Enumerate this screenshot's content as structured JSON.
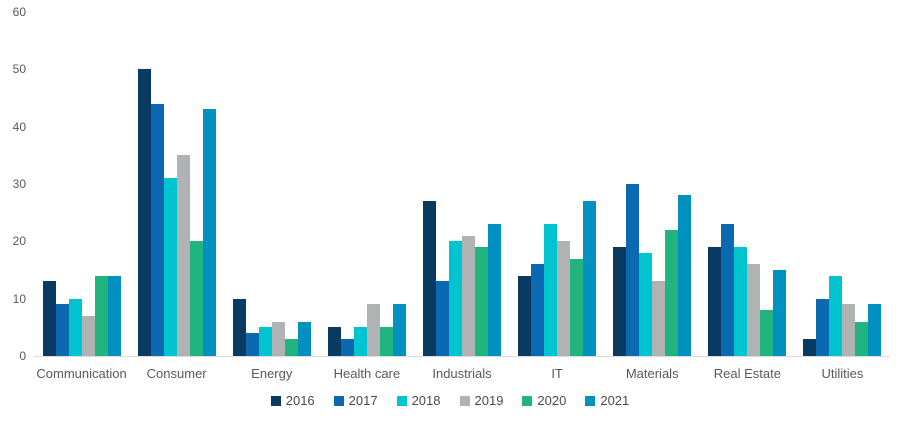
{
  "chart_data": {
    "type": "bar",
    "title": "",
    "categories": [
      "Communication",
      "Consumer",
      "Energy",
      "Health care",
      "Industrials",
      "IT",
      "Materials",
      "Real Estate",
      "Utilities"
    ],
    "series": [
      {
        "name": "2016",
        "color": "#093a61",
        "values": [
          13,
          50,
          10,
          5,
          27,
          14,
          19,
          19,
          3
        ]
      },
      {
        "name": "2017",
        "color": "#0a69b0",
        "values": [
          9,
          44,
          4,
          3,
          13,
          16,
          30,
          23,
          10
        ]
      },
      {
        "name": "2018",
        "color": "#00c5d0",
        "values": [
          10,
          31,
          5,
          5,
          20,
          23,
          18,
          19,
          14
        ]
      },
      {
        "name": "2019",
        "color": "#b0b2b4",
        "values": [
          7,
          35,
          6,
          9,
          21,
          20,
          13,
          16,
          9
        ]
      },
      {
        "name": "2020",
        "color": "#22b47e",
        "values": [
          14,
          20,
          3,
          5,
          19,
          17,
          22,
          8,
          6
        ]
      },
      {
        "name": "2021",
        "color": "#0091c1",
        "values": [
          14,
          43,
          6,
          9,
          23,
          27,
          28,
          15,
          9
        ]
      }
    ],
    "xlabel": "",
    "ylabel": "",
    "ylim": [
      0,
      60
    ],
    "yticks": [
      0,
      10,
      20,
      30,
      40,
      50,
      60
    ],
    "grid": false,
    "legend_position": "bottom",
    "axis_line_color": "#dcdcdc",
    "tick_label_color": "#595959",
    "legend_text_color": "#4a4a4a",
    "background_color": "#ffffff"
  }
}
